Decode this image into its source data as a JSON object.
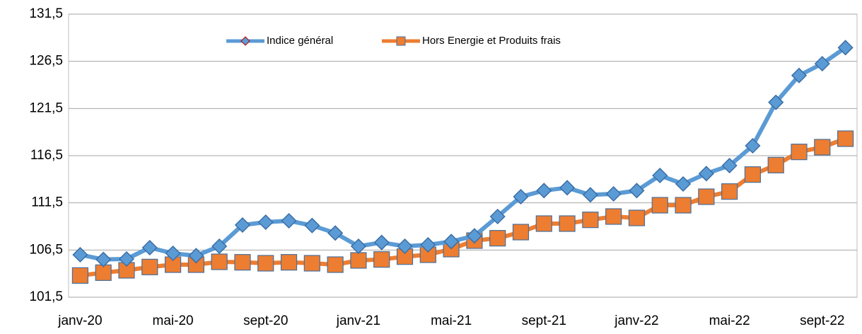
{
  "chart_data": {
    "type": "line",
    "categories": [
      "janv-20",
      null,
      null,
      null,
      "mai-20",
      null,
      null,
      null,
      "sept-20",
      null,
      null,
      null,
      "janv-21",
      null,
      null,
      null,
      "mai-21",
      null,
      null,
      null,
      "sept-21",
      null,
      null,
      null,
      "janv-22",
      null,
      null,
      null,
      "mai-22",
      null,
      null,
      null,
      "sept-22",
      null
    ],
    "series": [
      {
        "name": "Indice général",
        "color": "#5b9bd5",
        "values": [
          106.0,
          105.5,
          105.55,
          106.75,
          106.15,
          105.9,
          106.9,
          109.15,
          109.45,
          109.6,
          109.1,
          108.3,
          106.9,
          107.3,
          106.9,
          107.05,
          107.4,
          108.0,
          110.05,
          112.15,
          112.8,
          113.1,
          112.35,
          112.45,
          112.8,
          114.4,
          113.5,
          114.6,
          115.45,
          117.55,
          122.15,
          125.0,
          126.25,
          127.95
        ]
      },
      {
        "name": "Hors Energie et Produits frais",
        "color": "#ed7d31",
        "values": [
          103.8,
          104.1,
          104.35,
          104.7,
          104.95,
          104.95,
          105.25,
          105.2,
          105.1,
          105.2,
          105.1,
          104.95,
          105.4,
          105.5,
          105.8,
          106.0,
          106.6,
          107.5,
          107.75,
          108.4,
          109.3,
          109.3,
          109.7,
          110.05,
          109.9,
          111.25,
          111.25,
          112.15,
          112.7,
          114.5,
          115.5,
          116.9,
          117.4,
          118.3
        ]
      }
    ],
    "ylim": [
      101.5,
      131.5
    ],
    "yticks": [
      {
        "value": 101.5,
        "label": "101,5"
      },
      {
        "value": 106.5,
        "label": "106,5"
      },
      {
        "value": 111.5,
        "label": "111,5"
      },
      {
        "value": 116.5,
        "label": "116,5"
      },
      {
        "value": 121.5,
        "label": "121,5"
      },
      {
        "value": 126.5,
        "label": "126,5"
      },
      {
        "value": 131.5,
        "label": "131,5"
      }
    ],
    "grid": true,
    "legend": "top"
  }
}
